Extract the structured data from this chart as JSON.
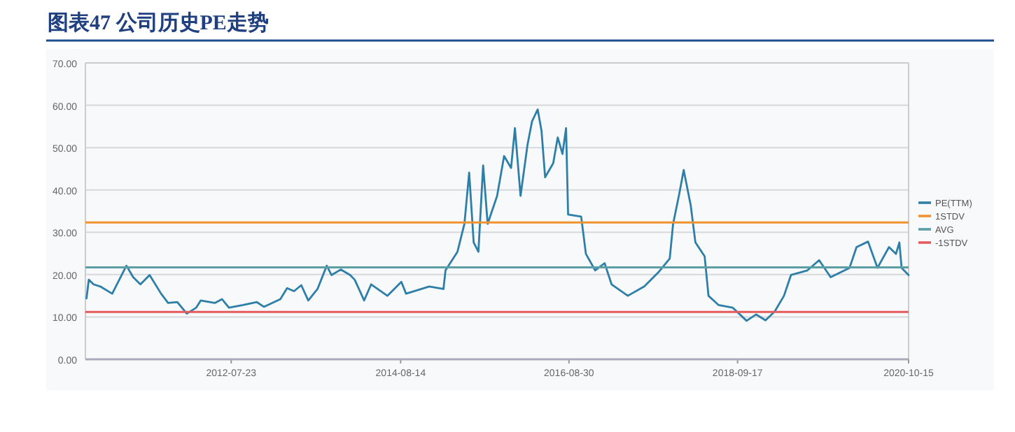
{
  "chart_data": {
    "type": "line",
    "title": "图表47   公司历史PE走势",
    "x": [
      "2010-10-20",
      "2010-10-30",
      "2010-11-20",
      "2010-12-20",
      "2011-02-11",
      "2011-03-25",
      "2011-04-15",
      "2011-05-15",
      "2011-06-16",
      "2011-07-27",
      "2011-09-16",
      "2011-10-17",
      "2011-11-27",
      "2012-01-08",
      "2012-02-19",
      "2012-03-10",
      "2012-05-11",
      "2012-06-12",
      "2012-07-13",
      "2012-09-13",
      "2012-11-14",
      "2012-12-15",
      "2013-02-26",
      "2013-03-28",
      "2013-04-28",
      "2013-05-30",
      "2013-06-30",
      "2013-08-10",
      "2013-09-20",
      "2013-10-11",
      "2013-11-21",
      "2014-01-02",
      "2014-01-22",
      "2014-03-05",
      "2014-04-05",
      "2014-06-16",
      "2014-08-17",
      "2014-09-07",
      "2014-12-19",
      "2015-02-20",
      "2015-03-01",
      "2015-04-23",
      "2015-05-24",
      "2015-06-14",
      "2015-07-04",
      "2015-07-25",
      "2015-08-15",
      "2015-09-04",
      "2015-10-16",
      "2015-11-16",
      "2015-12-17",
      "2016-01-03",
      "2016-01-28",
      "2016-02-28",
      "2016-03-19",
      "2016-04-13",
      "2016-04-30",
      "2016-05-16",
      "2016-06-21",
      "2016-07-11",
      "2016-08-01",
      "2016-08-17",
      "2016-08-26",
      "2016-10-23",
      "2016-11-13",
      "2016-12-24",
      "2017-02-04",
      "2017-03-07",
      "2017-05-18",
      "2017-07-30",
      "2017-09-30",
      "2017-11-20",
      "2017-12-05",
      "2018-01-01",
      "2018-01-21",
      "2018-02-21",
      "2018-03-14",
      "2018-04-24",
      "2018-05-11",
      "2018-06-25",
      "2018-08-26",
      "2018-10-27",
      "2018-12-08",
      "2019-01-19",
      "2019-03-01",
      "2019-04-11",
      "2019-05-12",
      "2019-07-24",
      "2019-09-14",
      "2019-11-04",
      "2020-01-27",
      "2020-02-27",
      "2020-04-18",
      "2020-05-30",
      "2020-07-20",
      "2020-08-20",
      "2020-09-04",
      "2020-09-14",
      "2020-10-15"
    ],
    "series": [
      {
        "name": "PE(TTM)",
        "color": "#2e7fa8",
        "values": [
          14.4,
          18.8,
          17.7,
          17.2,
          15.5,
          19.9,
          22.1,
          19.4,
          17.7,
          19.9,
          15.5,
          13.3,
          13.5,
          10.8,
          12.2,
          13.9,
          13.3,
          14.2,
          12.2,
          12.8,
          13.5,
          12.4,
          14.2,
          16.8,
          16.1,
          17.5,
          13.9,
          16.6,
          22.1,
          19.9,
          21.2,
          19.9,
          18.8,
          13.9,
          17.7,
          15.0,
          18.3,
          15.5,
          17.2,
          16.6,
          21.0,
          25.4,
          32.0,
          44.1,
          27.6,
          25.4,
          45.8,
          32.0,
          38.6,
          48.0,
          45.2,
          54.6,
          38.6,
          50.7,
          56.2,
          59.0,
          54.0,
          43.0,
          46.3,
          52.4,
          48.5,
          54.6,
          34.2,
          33.7,
          24.9,
          21.0,
          22.7,
          17.7,
          15.0,
          17.2,
          20.5,
          23.8,
          32.0,
          39.0,
          44.7,
          36.4,
          27.6,
          24.3,
          15.0,
          12.8,
          12.2,
          9.1,
          10.6,
          9.2,
          11.3,
          15.0,
          19.9,
          21.0,
          23.4,
          19.4,
          21.6,
          26.5,
          27.8,
          21.6,
          26.5,
          24.9,
          27.6,
          21.6,
          19.9
        ]
      }
    ],
    "ref_lines": [
      {
        "axis": "y",
        "value": 32.3,
        "label": "1STDV",
        "color": "#f0932f"
      },
      {
        "axis": "y",
        "value": 21.7,
        "label": "AVG",
        "color": "#5b9ea6"
      },
      {
        "axis": "y",
        "value": 11.2,
        "label": "-1STDV",
        "color": "#e45b5b"
      }
    ],
    "xlim": [
      "2010-10-15",
      "2020-10-15"
    ],
    "xticks": [
      "2012-07-23",
      "2014-08-14",
      "2016-08-30",
      "2018-09-17",
      "2020-10-15"
    ],
    "ylim": [
      0,
      70
    ],
    "yticks": [
      {
        "value": 0,
        "label": "0.00"
      },
      {
        "value": 10,
        "label": "10.00"
      },
      {
        "value": 20,
        "label": "20.00"
      },
      {
        "value": 30,
        "label": "30.00"
      },
      {
        "value": 40,
        "label": "40.00"
      },
      {
        "value": 50,
        "label": "50.00"
      },
      {
        "value": 60,
        "label": "60.00"
      },
      {
        "value": 70,
        "label": "70.00"
      }
    ],
    "grid": "y",
    "legend": "right"
  }
}
